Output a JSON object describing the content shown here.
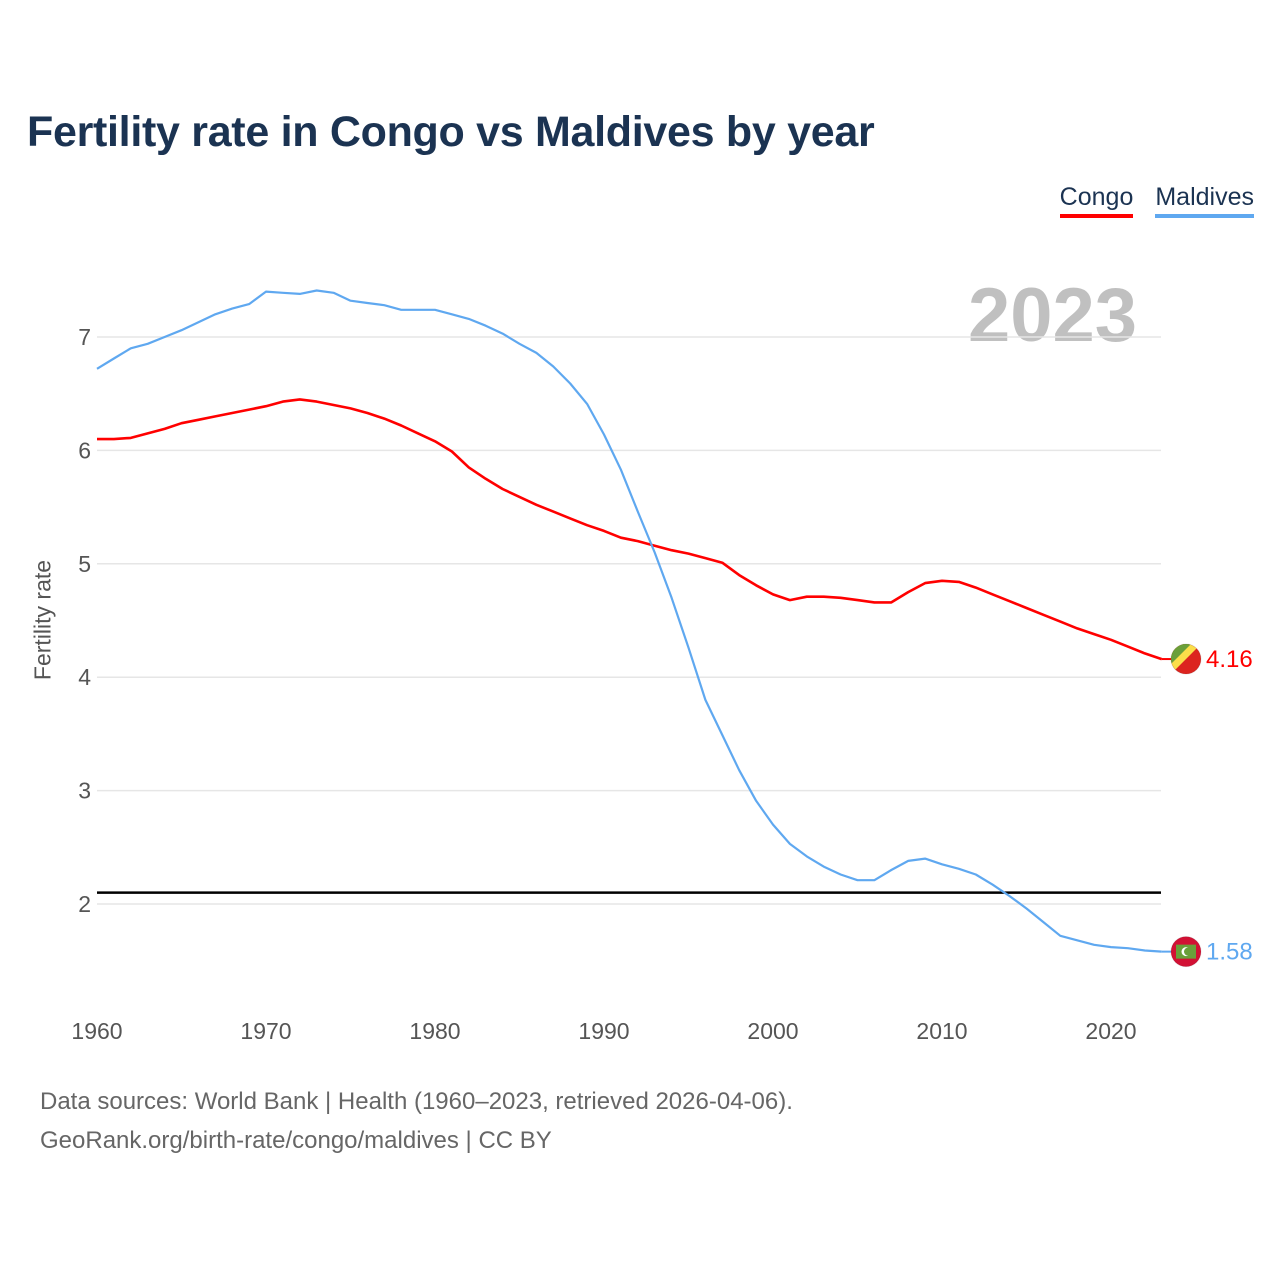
{
  "chart_data": {
    "type": "line",
    "title": "Fertility rate in Congo vs Maldives by year",
    "xlabel": "",
    "ylabel": "Fertility rate",
    "xlim": [
      1960,
      2023
    ],
    "ylim": [
      1.3,
      7.6
    ],
    "x_ticks": [
      1960,
      1970,
      1980,
      1990,
      2000,
      2010,
      2020
    ],
    "y_ticks": [
      2,
      3,
      4,
      5,
      6,
      7
    ],
    "grid": true,
    "legend_position": "top-right",
    "current_year_label": "2023",
    "reference_line": {
      "value": 2.1,
      "color": "#000000"
    },
    "x": [
      1960,
      1961,
      1962,
      1963,
      1964,
      1965,
      1966,
      1967,
      1968,
      1969,
      1970,
      1971,
      1972,
      1973,
      1974,
      1975,
      1976,
      1977,
      1978,
      1979,
      1980,
      1981,
      1982,
      1983,
      1984,
      1985,
      1986,
      1987,
      1988,
      1989,
      1990,
      1991,
      1992,
      1993,
      1994,
      1995,
      1996,
      1997,
      1998,
      1999,
      2000,
      2001,
      2002,
      2003,
      2004,
      2005,
      2006,
      2007,
      2008,
      2009,
      2010,
      2011,
      2012,
      2013,
      2014,
      2015,
      2016,
      2017,
      2018,
      2019,
      2020,
      2021,
      2022,
      2023
    ],
    "series": [
      {
        "name": "Congo",
        "color": "#ff0000",
        "end_label": "4.16",
        "flag": "congo-flag",
        "values": [
          6.1,
          6.1,
          6.11,
          6.15,
          6.19,
          6.24,
          6.27,
          6.3,
          6.33,
          6.36,
          6.39,
          6.43,
          6.45,
          6.43,
          6.4,
          6.37,
          6.33,
          6.28,
          6.22,
          6.15,
          6.08,
          5.99,
          5.85,
          5.75,
          5.66,
          5.59,
          5.52,
          5.46,
          5.4,
          5.34,
          5.29,
          5.23,
          5.2,
          5.16,
          5.12,
          5.09,
          5.05,
          5.01,
          4.9,
          4.81,
          4.73,
          4.68,
          4.71,
          4.71,
          4.7,
          4.68,
          4.66,
          4.66,
          4.75,
          4.83,
          4.85,
          4.84,
          4.79,
          4.73,
          4.67,
          4.61,
          4.55,
          4.49,
          4.43,
          4.38,
          4.33,
          4.27,
          4.21,
          4.16
        ]
      },
      {
        "name": "Maldives",
        "color": "#5fa8f0",
        "end_label": "1.58",
        "flag": "maldives-flag",
        "values": [
          6.72,
          6.81,
          6.9,
          6.94,
          7.0,
          7.06,
          7.13,
          7.2,
          7.25,
          7.29,
          7.4,
          7.39,
          7.38,
          7.41,
          7.39,
          7.32,
          7.3,
          7.28,
          7.24,
          7.24,
          7.24,
          7.2,
          7.16,
          7.1,
          7.03,
          6.94,
          6.86,
          6.74,
          6.59,
          6.41,
          6.14,
          5.83,
          5.46,
          5.1,
          4.7,
          4.26,
          3.8,
          3.49,
          3.18,
          2.91,
          2.7,
          2.53,
          2.42,
          2.33,
          2.26,
          2.21,
          2.21,
          2.3,
          2.38,
          2.4,
          2.35,
          2.31,
          2.26,
          2.17,
          2.07,
          1.96,
          1.84,
          1.72,
          1.68,
          1.64,
          1.62,
          1.61,
          1.59,
          1.58
        ]
      }
    ]
  },
  "footer": {
    "line1": "Data sources: World Bank | Health (1960–2023, retrieved 2026-04-06).",
    "line2": "GeoRank.org/birth-rate/congo/maldives | CC BY"
  }
}
